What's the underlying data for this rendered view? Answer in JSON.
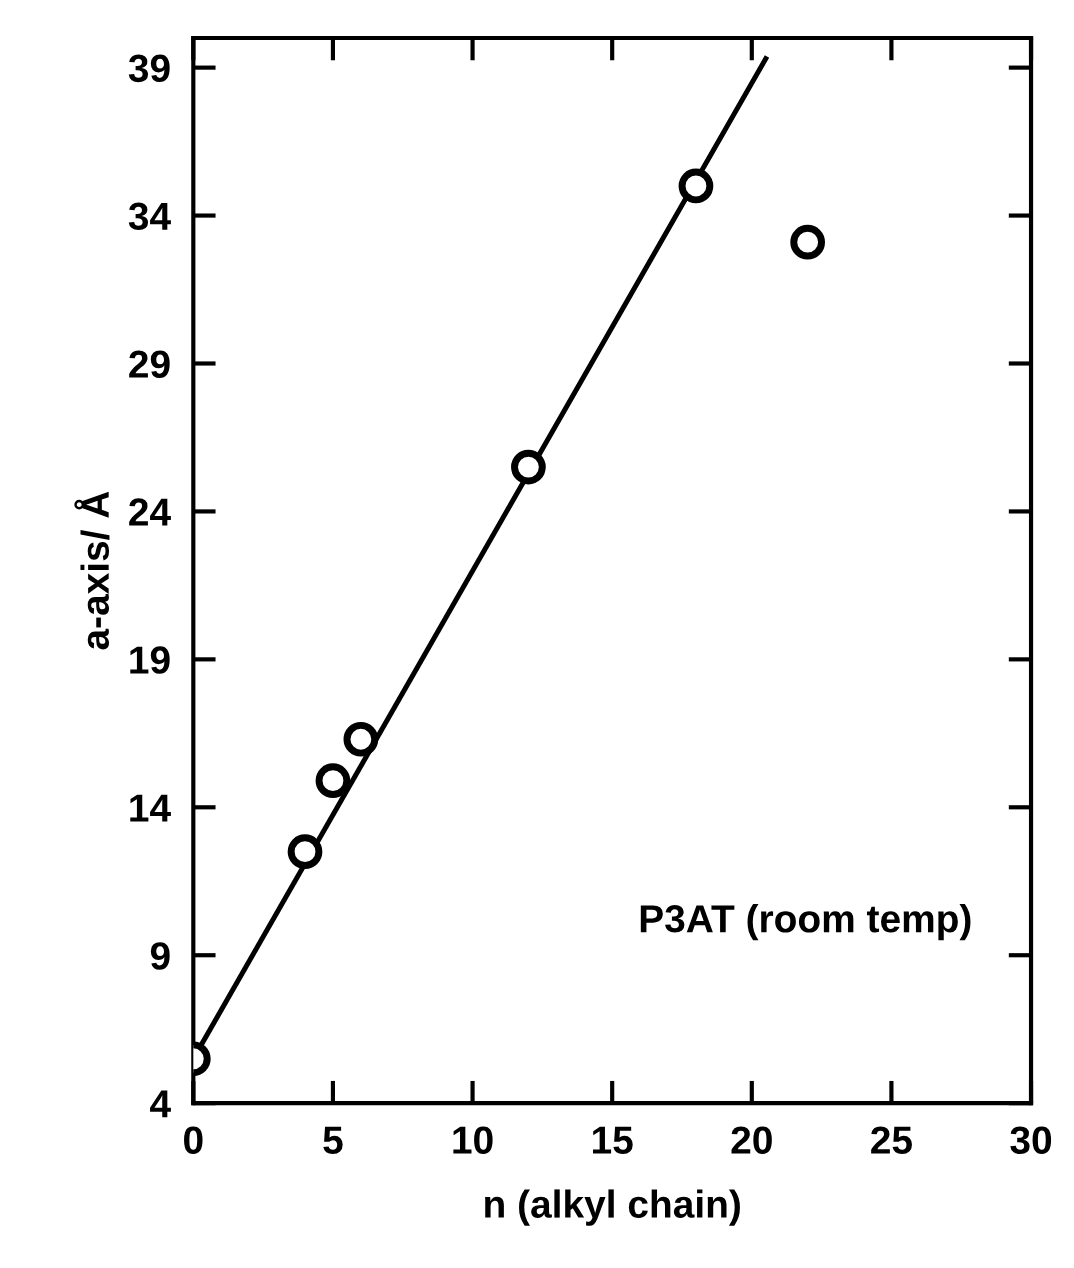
{
  "chart_data": {
    "type": "scatter",
    "xlabel": "n (alkyl chain)",
    "ylabel": "a-axis/ Å",
    "annotations": [
      "P3AT (room temp)"
    ],
    "xlim": [
      0,
      30
    ],
    "xticks": [
      0,
      5,
      10,
      15,
      20,
      25,
      30
    ],
    "ylim": [
      4,
      40
    ],
    "yticks": [
      4,
      9,
      14,
      19,
      24,
      29,
      34,
      39
    ],
    "grid": false,
    "series": [
      {
        "marker": "circle",
        "color": "#000000",
        "x": [
          0,
          4,
          5,
          6,
          12,
          18,
          22
        ],
        "values": [
          5.5,
          12.5,
          14.9,
          16.3,
          25.5,
          35.0,
          33.1
        ]
      },
      {
        "type": "line",
        "color": "#000000",
        "line_style": "solid",
        "x": [
          0,
          20.5
        ],
        "values": [
          5.5,
          39.3
        ]
      }
    ]
  }
}
